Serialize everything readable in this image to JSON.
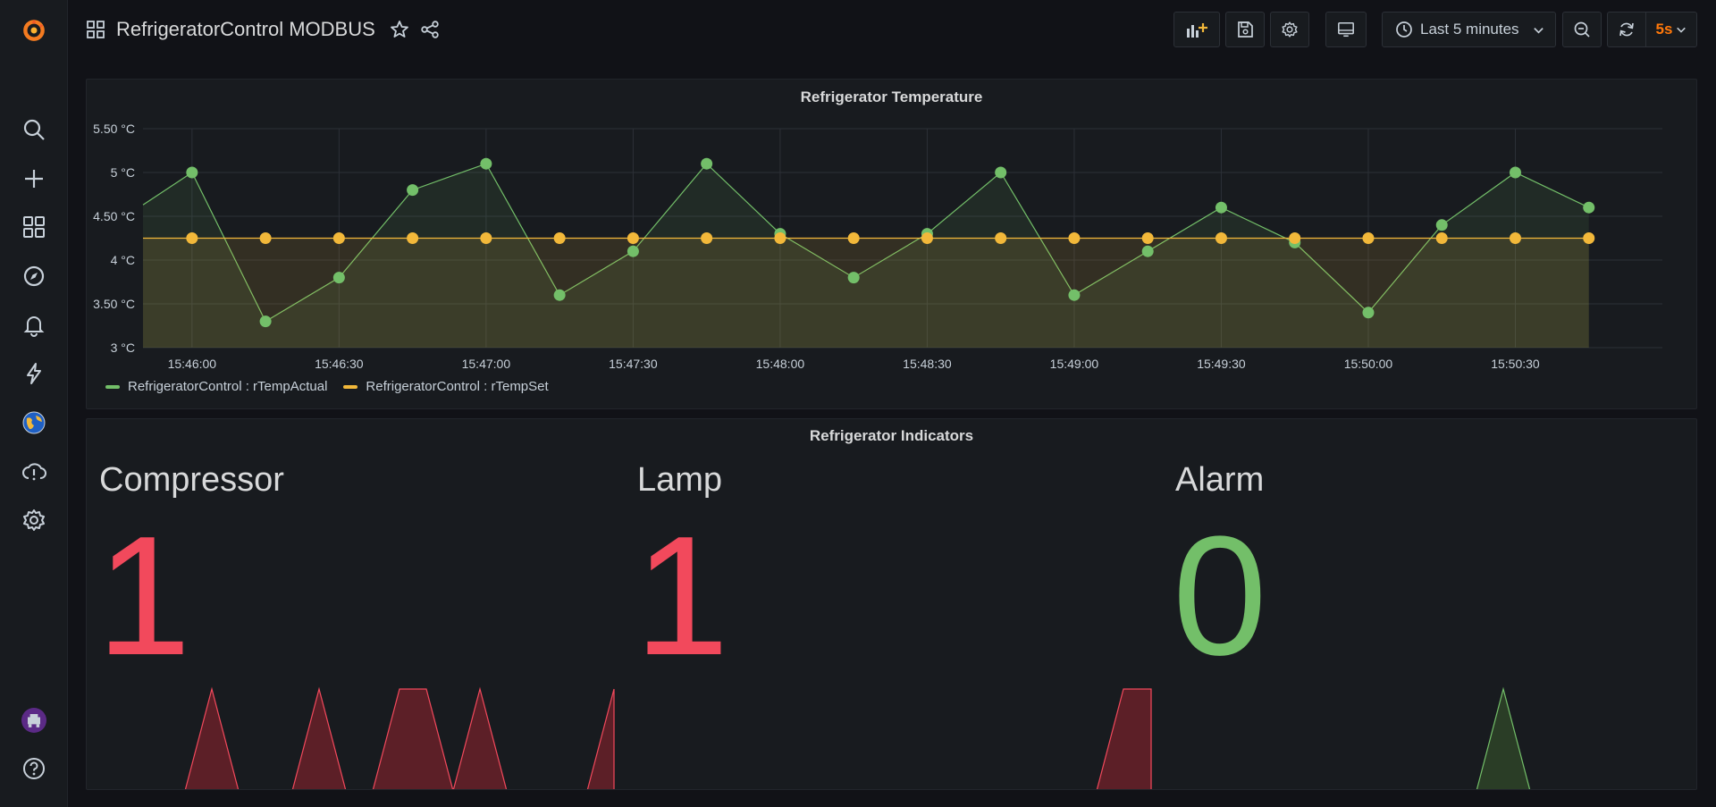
{
  "header": {
    "title": "RefrigeratorControl MODBUS",
    "time_range": "Last 5 minutes",
    "refresh_interval": "5s"
  },
  "sidebar": {
    "items": [
      "grafana-logo-icon",
      "search-icon",
      "plus-icon",
      "dashboards-icon",
      "explore-icon",
      "alerting-icon",
      "lightning-icon",
      "plugin-globe-icon",
      "cloud-alert-icon",
      "gear-icon",
      "user-avatar-icon",
      "help-icon"
    ]
  },
  "colors": {
    "actual": "#73bf69",
    "set": "#f2b83a",
    "red": "#f2495c",
    "green": "#73bf69",
    "accent": "#ff780a"
  },
  "temperature_panel": {
    "title": "Refrigerator Temperature",
    "legend": [
      {
        "label": "RefrigeratorControl : rTempActual"
      },
      {
        "label": "RefrigeratorControl : rTempSet"
      }
    ]
  },
  "chart_data": {
    "type": "line",
    "ylim": [
      3,
      5.5
    ],
    "y_ticks": [
      {
        "value": 3,
        "label": "3 °C"
      },
      {
        "value": 3.5,
        "label": "3.50 °C"
      },
      {
        "value": 4,
        "label": "4 °C"
      },
      {
        "value": 4.5,
        "label": "4.50 °C"
      },
      {
        "value": 5,
        "label": "5 °C"
      },
      {
        "value": 5.5,
        "label": "5.50 °C"
      }
    ],
    "x_ticks": [
      "15:46:00",
      "15:46:30",
      "15:47:00",
      "15:47:30",
      "15:48:00",
      "15:48:30",
      "15:49:00",
      "15:49:30",
      "15:50:00",
      "15:50:30"
    ],
    "x": [
      "15:45:50",
      "15:46:00",
      "15:46:15",
      "15:46:30",
      "15:46:45",
      "15:47:00",
      "15:47:15",
      "15:47:30",
      "15:47:45",
      "15:48:00",
      "15:48:15",
      "15:48:30",
      "15:48:45",
      "15:49:00",
      "15:49:15",
      "15:49:30",
      "15:49:45",
      "15:50:00",
      "15:50:15",
      "15:50:30",
      "15:50:45"
    ],
    "series": [
      {
        "name": "RefrigeratorControl : rTempActual",
        "values": [
          4.63,
          5.0,
          3.3,
          3.8,
          4.8,
          5.1,
          3.6,
          4.1,
          5.1,
          4.3,
          3.8,
          4.3,
          5.0,
          3.6,
          4.1,
          4.6,
          4.2,
          3.4,
          4.4,
          5.0,
          4.6
        ]
      },
      {
        "name": "RefrigeratorControl : rTempSet",
        "values": [
          4.25,
          4.25,
          4.25,
          4.25,
          4.25,
          4.25,
          4.25,
          4.25,
          4.25,
          4.25,
          4.25,
          4.25,
          4.25,
          4.25,
          4.25,
          4.25,
          4.25,
          4.25,
          4.25,
          4.25,
          4.25
        ]
      }
    ]
  },
  "indicators_panel": {
    "title": "Refrigerator Indicators",
    "stats": [
      {
        "name": "Compressor",
        "value": "1",
        "color": "#f2495c"
      },
      {
        "name": "Lamp",
        "value": "1",
        "color": "#f2495c"
      },
      {
        "name": "Alarm",
        "value": "0",
        "color": "#73bf69"
      }
    ]
  }
}
